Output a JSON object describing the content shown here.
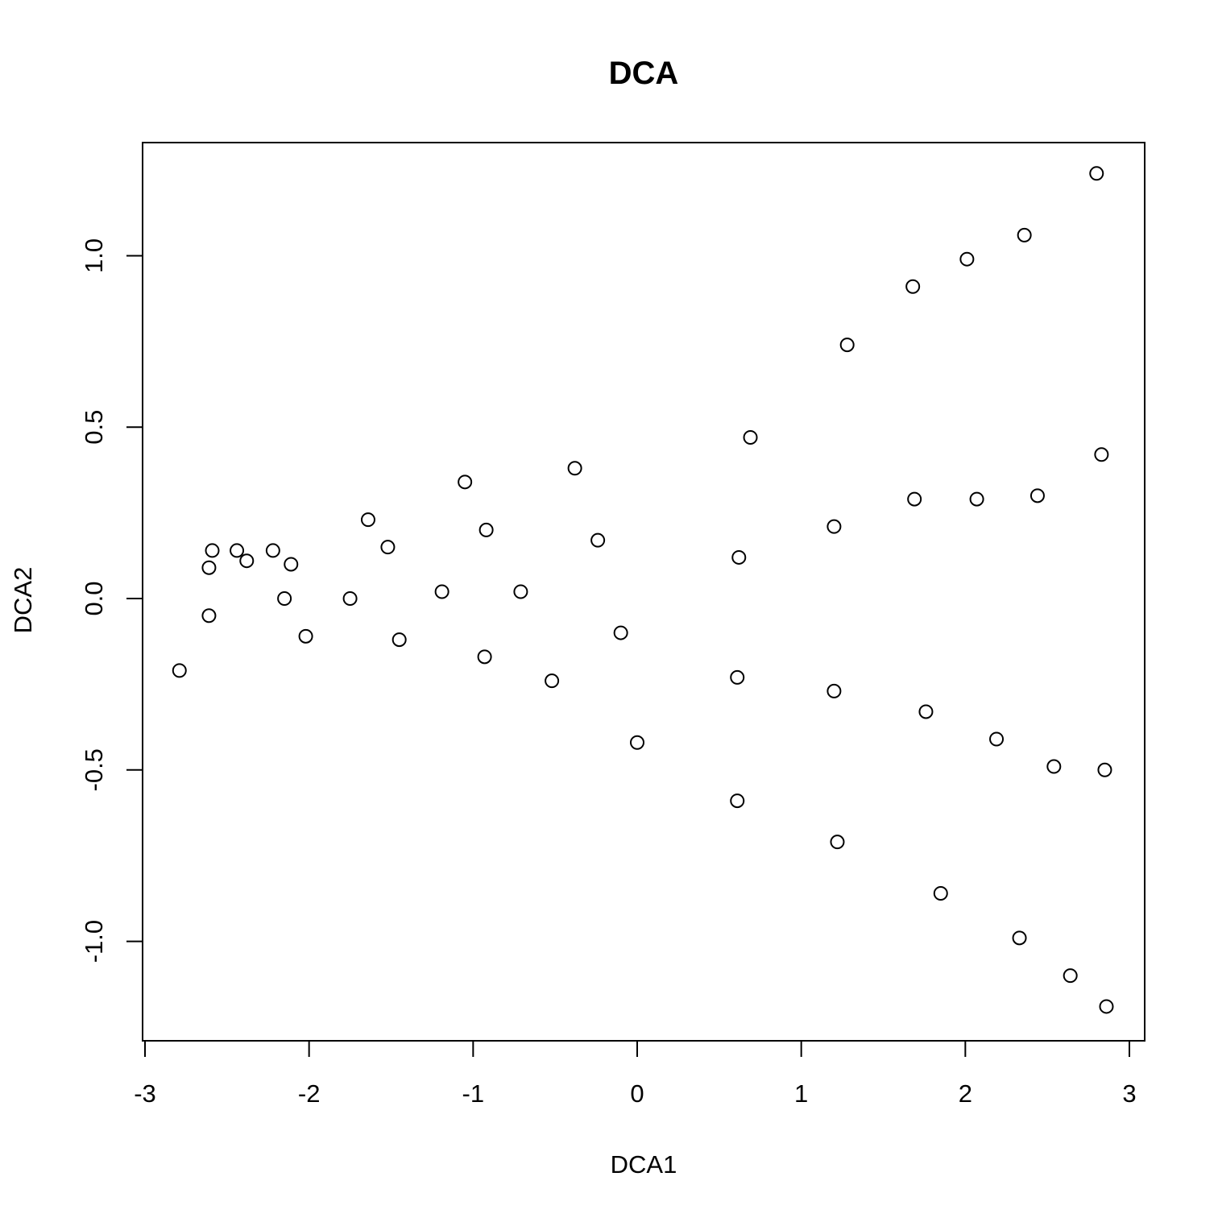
{
  "chart_data": {
    "type": "scatter",
    "title": "DCA",
    "xlabel": "DCA1",
    "ylabel": "DCA2",
    "xlim": [
      -3.0,
      3.0
    ],
    "ylim": [
      -1.29,
      1.33
    ],
    "x_ticks": [
      -3,
      -2,
      -1,
      0,
      1,
      2,
      3
    ],
    "x_tick_labels": [
      "-3",
      "-2",
      "-1",
      "0",
      "1",
      "2",
      "3"
    ],
    "y_ticks": [
      -1.0,
      -0.5,
      0.0,
      0.5,
      1.0
    ],
    "y_tick_labels": [
      "-1.0",
      "-0.5",
      "0.0",
      "0.5",
      "1.0"
    ],
    "grid": false,
    "legend": "none",
    "marker": "open-circle",
    "points": [
      {
        "x": -2.79,
        "y": -0.21
      },
      {
        "x": -2.61,
        "y": 0.09
      },
      {
        "x": -2.61,
        "y": -0.05
      },
      {
        "x": -2.59,
        "y": 0.14
      },
      {
        "x": -2.44,
        "y": 0.14
      },
      {
        "x": -2.38,
        "y": 0.11
      },
      {
        "x": -2.22,
        "y": 0.14
      },
      {
        "x": -2.15,
        "y": 0.0
      },
      {
        "x": -2.11,
        "y": 0.1
      },
      {
        "x": -2.02,
        "y": -0.11
      },
      {
        "x": -1.75,
        "y": 0.0
      },
      {
        "x": -1.64,
        "y": 0.23
      },
      {
        "x": -1.52,
        "y": 0.15
      },
      {
        "x": -1.45,
        "y": -0.12
      },
      {
        "x": -1.19,
        "y": 0.02
      },
      {
        "x": -1.05,
        "y": 0.34
      },
      {
        "x": -0.93,
        "y": -0.17
      },
      {
        "x": -0.92,
        "y": 0.2
      },
      {
        "x": -0.71,
        "y": 0.02
      },
      {
        "x": -0.52,
        "y": -0.24
      },
      {
        "x": -0.38,
        "y": 0.38
      },
      {
        "x": -0.24,
        "y": 0.17
      },
      {
        "x": -0.1,
        "y": -0.1
      },
      {
        "x": 0.0,
        "y": -0.42
      },
      {
        "x": 0.61,
        "y": -0.23
      },
      {
        "x": 0.61,
        "y": -0.59
      },
      {
        "x": 0.62,
        "y": 0.12
      },
      {
        "x": 0.69,
        "y": 0.47
      },
      {
        "x": 1.2,
        "y": 0.21
      },
      {
        "x": 1.2,
        "y": -0.27
      },
      {
        "x": 1.22,
        "y": -0.71
      },
      {
        "x": 1.28,
        "y": 0.74
      },
      {
        "x": 1.68,
        "y": 0.91
      },
      {
        "x": 1.69,
        "y": 0.29
      },
      {
        "x": 1.76,
        "y": -0.33
      },
      {
        "x": 1.85,
        "y": -0.86
      },
      {
        "x": 2.01,
        "y": 0.99
      },
      {
        "x": 2.07,
        "y": 0.29
      },
      {
        "x": 2.19,
        "y": -0.41
      },
      {
        "x": 2.33,
        "y": -0.99
      },
      {
        "x": 2.36,
        "y": 1.06
      },
      {
        "x": 2.44,
        "y": 0.3
      },
      {
        "x": 2.54,
        "y": -0.49
      },
      {
        "x": 2.64,
        "y": -1.1
      },
      {
        "x": 2.8,
        "y": 1.24
      },
      {
        "x": 2.83,
        "y": 0.42
      },
      {
        "x": 2.85,
        "y": -0.5
      },
      {
        "x": 2.86,
        "y": -1.19
      }
    ]
  }
}
